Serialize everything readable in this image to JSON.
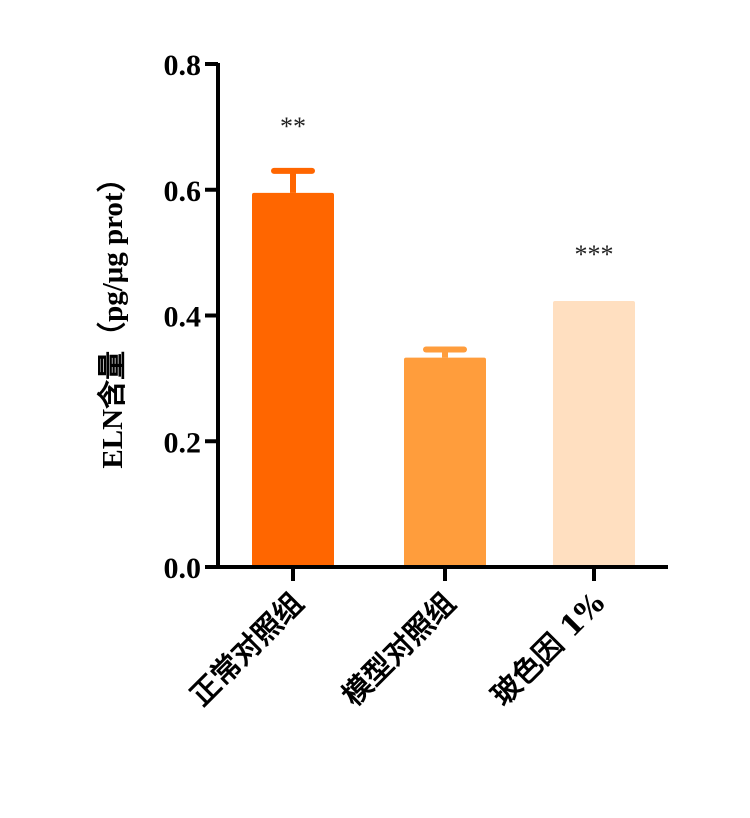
{
  "chart_data": {
    "type": "bar",
    "title": "",
    "xlabel": "",
    "ylabel": "ELN含量（pg/μg prot）",
    "ylim": [
      0,
      0.8
    ],
    "yticks": [
      "0.0",
      "0.2",
      "0.4",
      "0.6",
      "0.8"
    ],
    "grid": false,
    "legend": null,
    "categories": [
      "正常对照组",
      "模型对照组",
      "玻色因 1%"
    ],
    "values": [
      0.595,
      0.333,
      0.423
    ],
    "error_bars": [
      0.035,
      0.013,
      0.003
    ],
    "annotations": [
      "**",
      "",
      "***"
    ],
    "colors": [
      "#ff6600",
      "#ff9d3c",
      "#ffdfc0"
    ]
  }
}
